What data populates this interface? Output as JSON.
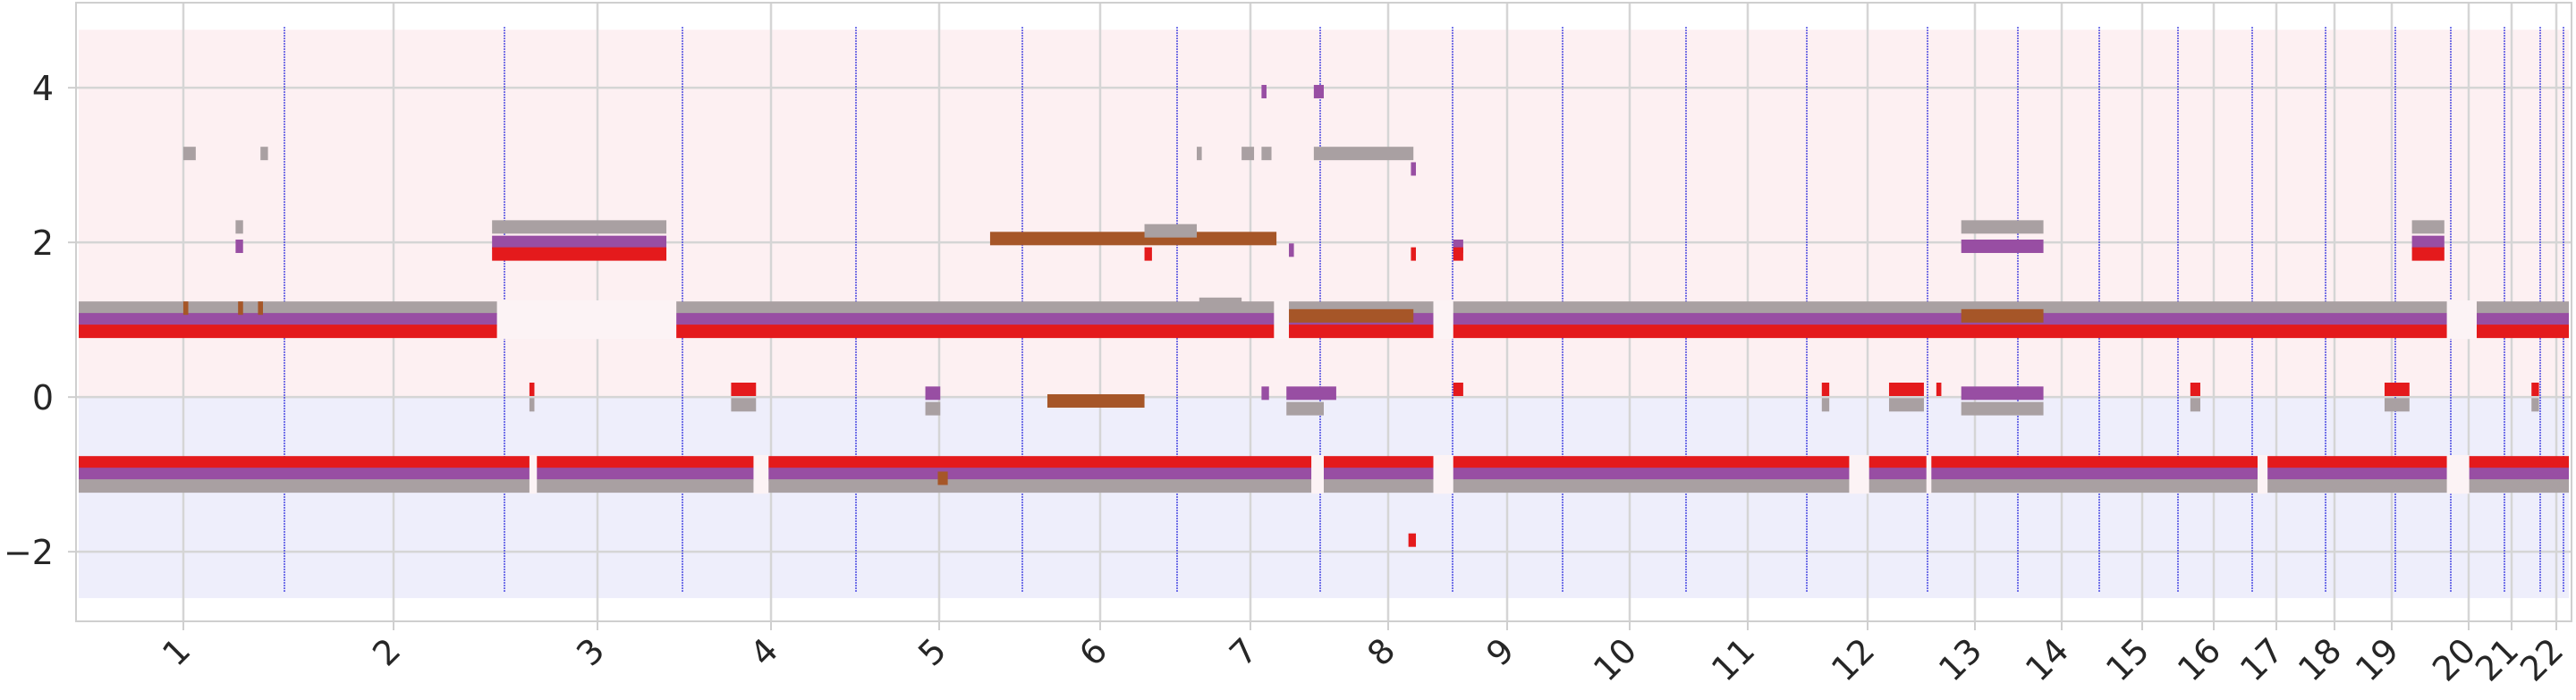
{
  "chart_data": {
    "type": "timeline",
    "x_ticks": [
      "1",
      "2",
      "3",
      "4",
      "5",
      "6",
      "7",
      "8",
      "9",
      "10",
      "11",
      "12",
      "13",
      "14",
      "15",
      "16",
      "17",
      "18",
      "19",
      "20",
      "21",
      "22"
    ],
    "y_ticks": [
      "−2",
      "0",
      "2",
      "4"
    ],
    "y_range": [
      -2.9,
      5.1
    ],
    "x_range": [
      0,
      1000
    ],
    "background_bands": [
      {
        "from": 0,
        "to": 4.75,
        "color": "#fdf0f2"
      },
      {
        "from": -2.6,
        "to": 0,
        "color": "#eeeefb"
      }
    ],
    "grid": true,
    "series_colors": {
      "red": "#e41a1c",
      "purple": "#984ea3",
      "brown": "#a65628",
      "gray": "#a9a0a2"
    },
    "segments": [
      {
        "c": "gray",
        "y": 1.15,
        "x0": 0,
        "x1": 168
      },
      {
        "c": "purple",
        "y": 1.0,
        "x0": 0,
        "x1": 168
      },
      {
        "c": "red",
        "y": 0.85,
        "x0": 0,
        "x1": 168
      },
      {
        "c": "brown",
        "y": 1.15,
        "x0": 42,
        "x1": 44
      },
      {
        "c": "brown",
        "y": 1.15,
        "x0": 64,
        "x1": 66
      },
      {
        "c": "brown",
        "y": 1.15,
        "x0": 72,
        "x1": 74
      },
      {
        "c": "gray",
        "y": 3.15,
        "x0": 42,
        "x1": 47
      },
      {
        "c": "gray",
        "y": 3.15,
        "x0": 73,
        "x1": 76
      },
      {
        "c": "gray",
        "y": 2.2,
        "x0": 63,
        "x1": 66
      },
      {
        "c": "purple",
        "y": 1.95,
        "x0": 63,
        "x1": 66
      },
      {
        "c": "gray",
        "y": 2.2,
        "x0": 166,
        "x1": 236
      },
      {
        "c": "purple",
        "y": 2.0,
        "x0": 166,
        "x1": 236
      },
      {
        "c": "red",
        "y": 1.85,
        "x0": 166,
        "x1": 236
      },
      {
        "c": "red",
        "y": 1.0,
        "x0": 181,
        "x1": 183
      },
      {
        "c": "red",
        "y": 0.1,
        "x0": 181,
        "x1": 183
      },
      {
        "c": "gray",
        "y": -0.1,
        "x0": 181,
        "x1": 183
      },
      {
        "c": "gray",
        "y": 1.15,
        "x0": 236,
        "x1": 1000
      },
      {
        "c": "purple",
        "y": 1.0,
        "x0": 236,
        "x1": 1000
      },
      {
        "c": "red",
        "y": 0.85,
        "x0": 236,
        "x1": 1000
      },
      {
        "c": "red",
        "y": 0.1,
        "x0": 262,
        "x1": 272
      },
      {
        "c": "gray",
        "y": -0.1,
        "x0": 262,
        "x1": 272
      },
      {
        "c": "purple",
        "y": 0.05,
        "x0": 340,
        "x1": 346
      },
      {
        "c": "gray",
        "y": -0.15,
        "x0": 340,
        "x1": 346
      },
      {
        "c": "brown",
        "y": 2.05,
        "x0": 366,
        "x1": 481
      },
      {
        "c": "brown",
        "y": -0.05,
        "x0": 389,
        "x1": 428
      },
      {
        "c": "gray",
        "y": 2.15,
        "x0": 428,
        "x1": 449
      },
      {
        "c": "red",
        "y": 1.85,
        "x0": 428,
        "x1": 431
      },
      {
        "c": "gray",
        "y": 3.15,
        "x0": 449,
        "x1": 451
      },
      {
        "c": "gray",
        "y": 3.15,
        "x0": 467,
        "x1": 472
      },
      {
        "c": "gray",
        "y": 3.15,
        "x0": 475,
        "x1": 479
      },
      {
        "c": "purple",
        "y": 3.95,
        "x0": 475,
        "x1": 477
      },
      {
        "c": "purple",
        "y": 3.95,
        "x0": 496,
        "x1": 500
      },
      {
        "c": "gray",
        "y": 3.15,
        "x0": 496,
        "x1": 536
      },
      {
        "c": "gray",
        "y": 1.2,
        "x0": 450,
        "x1": 467
      },
      {
        "c": "purple",
        "y": 0.05,
        "x0": 475,
        "x1": 478
      },
      {
        "c": "purple",
        "y": 0.05,
        "x0": 485,
        "x1": 505
      },
      {
        "c": "gray",
        "y": -0.15,
        "x0": 485,
        "x1": 500
      },
      {
        "c": "brown",
        "y": 1.05,
        "x0": 485,
        "x1": 536
      },
      {
        "c": "purple",
        "y": 1.9,
        "x0": 486,
        "x1": 488
      },
      {
        "c": "purple",
        "y": 2.95,
        "x0": 535,
        "x1": 537
      },
      {
        "c": "red",
        "y": 1.85,
        "x0": 535,
        "x1": 537
      },
      {
        "c": "purple",
        "y": 1.95,
        "x0": 552,
        "x1": 556
      },
      {
        "c": "red",
        "y": 1.85,
        "x0": 552,
        "x1": 556
      },
      {
        "c": "red",
        "y": 0.1,
        "x0": 552,
        "x1": 556
      },
      {
        "c": "red",
        "y": 0.1,
        "x0": 700,
        "x1": 703
      },
      {
        "c": "gray",
        "y": -0.1,
        "x0": 700,
        "x1": 703
      },
      {
        "c": "red",
        "y": 0.1,
        "x0": 727,
        "x1": 741
      },
      {
        "c": "gray",
        "y": -0.1,
        "x0": 727,
        "x1": 741
      },
      {
        "c": "red",
        "y": 0.1,
        "x0": 746,
        "x1": 748
      },
      {
        "c": "gray",
        "y": 2.2,
        "x0": 756,
        "x1": 789
      },
      {
        "c": "purple",
        "y": 1.95,
        "x0": 756,
        "x1": 789
      },
      {
        "c": "brown",
        "y": 1.05,
        "x0": 756,
        "x1": 789
      },
      {
        "c": "purple",
        "y": 0.05,
        "x0": 756,
        "x1": 789
      },
      {
        "c": "gray",
        "y": -0.15,
        "x0": 756,
        "x1": 789
      },
      {
        "c": "brown",
        "y": -1.05,
        "x0": 756,
        "x1": 789
      },
      {
        "c": "red",
        "y": 0.1,
        "x0": 848,
        "x1": 852
      },
      {
        "c": "gray",
        "y": -0.1,
        "x0": 848,
        "x1": 852
      },
      {
        "c": "red",
        "y": 0.1,
        "x0": 926,
        "x1": 936
      },
      {
        "c": "gray",
        "y": -0.1,
        "x0": 926,
        "x1": 936
      },
      {
        "c": "gray",
        "y": 2.2,
        "x0": 937,
        "x1": 950
      },
      {
        "c": "purple",
        "y": 2.0,
        "x0": 937,
        "x1": 950
      },
      {
        "c": "red",
        "y": 1.85,
        "x0": 937,
        "x1": 950
      },
      {
        "c": "red",
        "y": 0.1,
        "x0": 985,
        "x1": 988
      },
      {
        "c": "gray",
        "y": -0.1,
        "x0": 985,
        "x1": 988
      },
      {
        "c": "red",
        "y": -0.85,
        "x0": 0,
        "x1": 271
      },
      {
        "c": "purple",
        "y": -1.0,
        "x0": 0,
        "x1": 271
      },
      {
        "c": "gray",
        "y": -1.15,
        "x0": 0,
        "x1": 271
      },
      {
        "c": "red",
        "y": -0.85,
        "x0": 277,
        "x1": 1000
      },
      {
        "c": "purple",
        "y": -1.0,
        "x0": 277,
        "x1": 1000
      },
      {
        "c": "gray",
        "y": -1.15,
        "x0": 277,
        "x1": 1000
      },
      {
        "c": "brown",
        "y": -1.05,
        "x0": 345,
        "x1": 349
      },
      {
        "c": "red",
        "y": -1.85,
        "x0": 534,
        "x1": 537
      }
    ],
    "gaps": [
      {
        "y_from": 0.75,
        "y_to": 1.25,
        "x0": 168,
        "x1": 240
      },
      {
        "y_from": -1.25,
        "y_to": -0.75,
        "x0": 181,
        "x1": 184
      },
      {
        "y_from": -1.25,
        "y_to": -0.75,
        "x0": 271,
        "x1": 277
      },
      {
        "y_from": 0.75,
        "y_to": 1.25,
        "x0": 480,
        "x1": 486
      },
      {
        "y_from": -1.25,
        "y_to": -0.75,
        "x0": 495,
        "x1": 500
      },
      {
        "y_from": 0.75,
        "y_to": 1.25,
        "x0": 544,
        "x1": 552
      },
      {
        "y_from": -1.25,
        "y_to": -0.75,
        "x0": 544,
        "x1": 552
      },
      {
        "y_from": -1.25,
        "y_to": -0.75,
        "x0": 711,
        "x1": 719
      },
      {
        "y_from": -1.25,
        "y_to": -0.75,
        "x0": 742,
        "x1": 744
      },
      {
        "y_from": -1.25,
        "y_to": -0.75,
        "x0": 875,
        "x1": 879
      },
      {
        "y_from": -1.25,
        "y_to": -0.75,
        "x0": 951,
        "x1": 960
      },
      {
        "y_from": 0.75,
        "y_to": 1.25,
        "x0": 951,
        "x1": 963
      }
    ]
  }
}
